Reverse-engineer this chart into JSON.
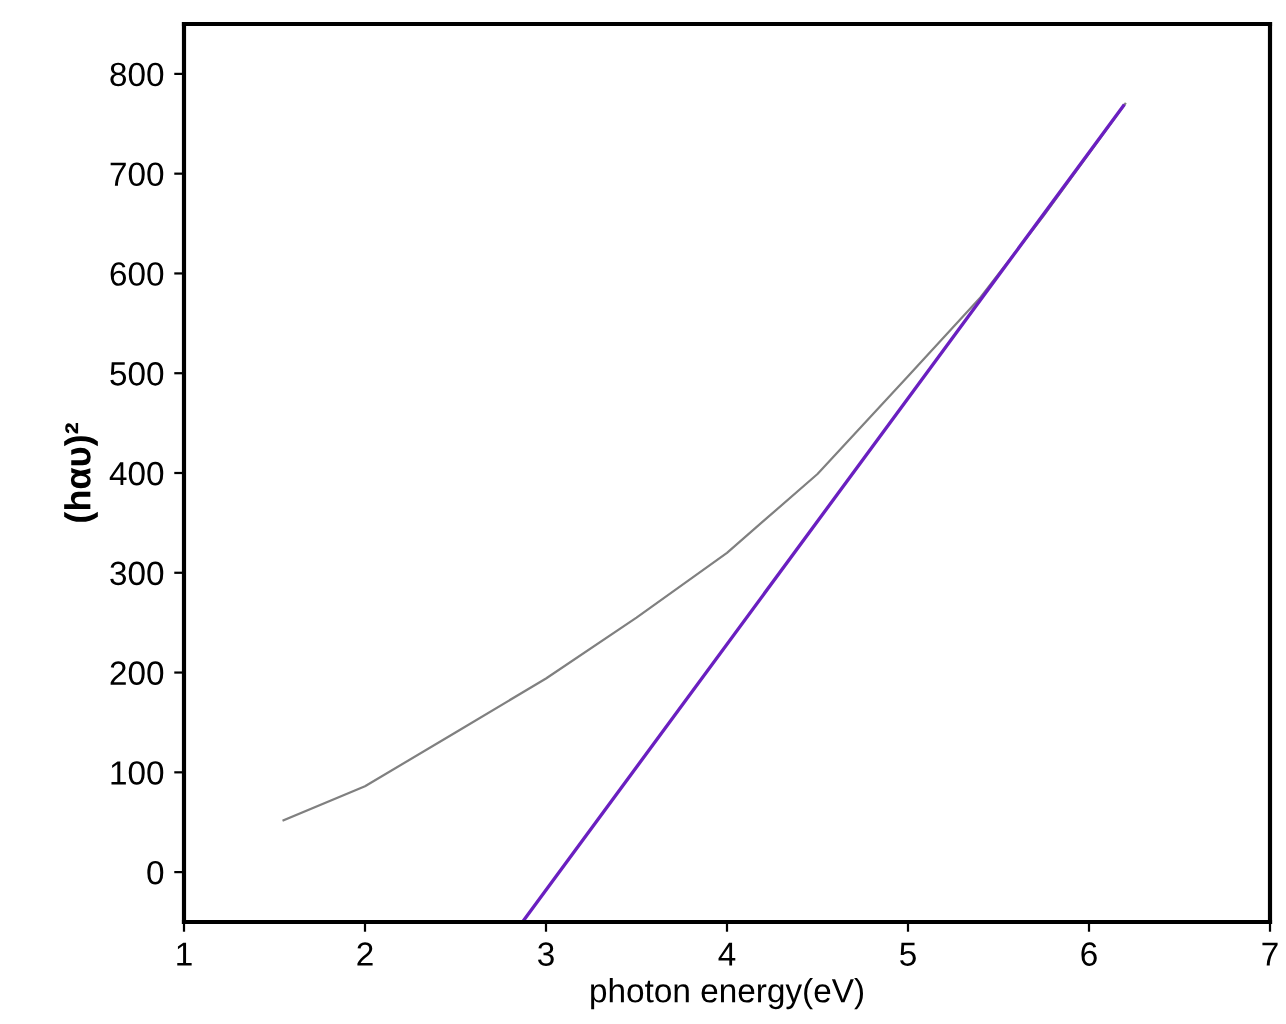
{
  "chart_data": {
    "type": "line",
    "xlabel": "photon energy(eV)",
    "ylabel": "(hαυ)²",
    "series": [
      {
        "color": "#808080",
        "x": [
          1.55,
          2.0,
          2.5,
          3.0,
          3.5,
          4.0,
          4.5,
          5.0,
          5.4,
          5.75,
          6.2
        ],
        "values": [
          52,
          86,
          140,
          194,
          255,
          320,
          399,
          497,
          576,
          658,
          770
        ]
      },
      {
        "color": "#6a1fc0",
        "x": [
          2.87,
          6.19
        ],
        "values": [
          -50,
          768
        ]
      }
    ],
    "xlim": [
      1,
      7
    ],
    "xticks": [
      1,
      2,
      3,
      4,
      5,
      6,
      7
    ],
    "ylim": [
      -50,
      850
    ],
    "yticks": [
      0,
      100,
      200,
      300,
      400,
      500,
      600,
      700,
      800
    ],
    "grid": false,
    "legend": false
  }
}
